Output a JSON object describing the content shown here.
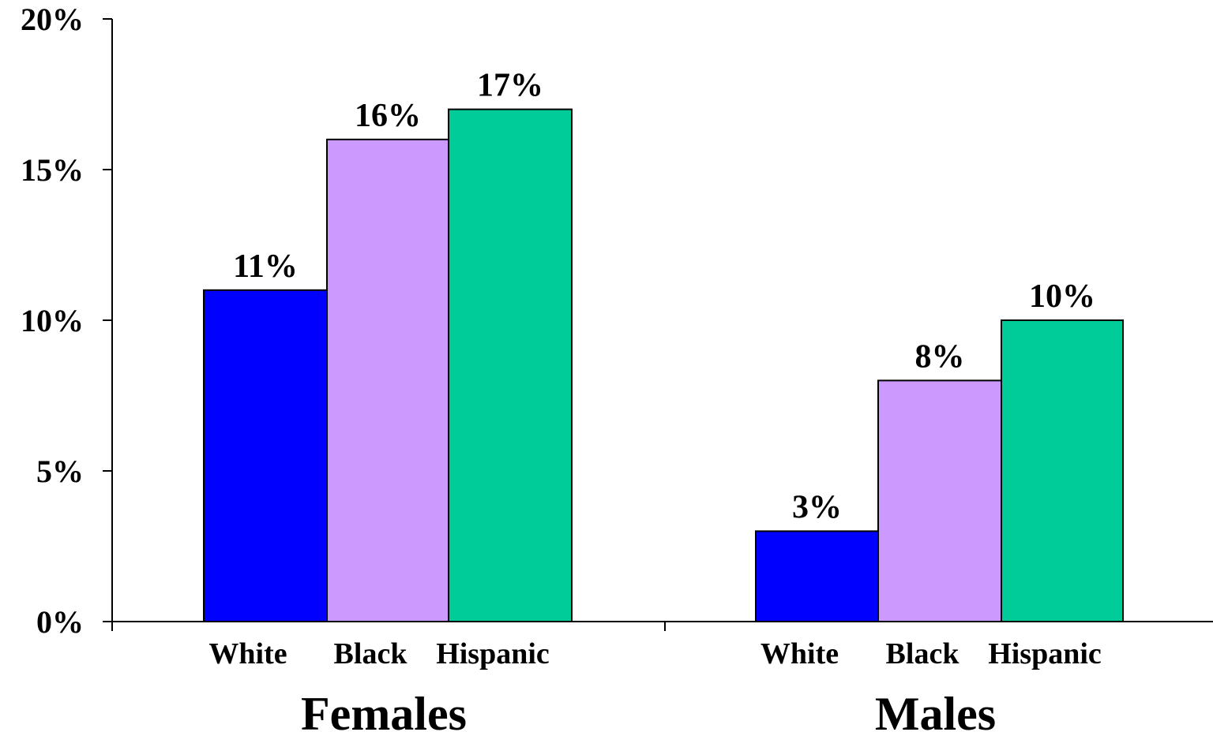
{
  "chart_data": {
    "type": "bar",
    "ylim": [
      0,
      20
    ],
    "y_ticks": [
      "0%",
      "5%",
      "10%",
      "15%",
      "20%"
    ],
    "y_tick_values": [
      0,
      5,
      10,
      15,
      20
    ],
    "grid": false,
    "legend": "none",
    "groups": [
      {
        "label": "Females",
        "bars": [
          {
            "category": "White",
            "value": 11,
            "label": "11%",
            "color": "#0000ff"
          },
          {
            "category": "Black",
            "value": 16,
            "label": "16%",
            "color": "#cc99ff"
          },
          {
            "category": "Hispanic",
            "value": 17,
            "label": "17%",
            "color": "#00cc99"
          }
        ]
      },
      {
        "label": "Males",
        "bars": [
          {
            "category": "White",
            "value": 3,
            "label": "3%",
            "color": "#0000ff"
          },
          {
            "category": "Black",
            "value": 8,
            "label": "8%",
            "color": "#cc99ff"
          },
          {
            "category": "Hispanic",
            "value": 10,
            "label": "10%",
            "color": "#00cc99"
          }
        ]
      }
    ]
  }
}
